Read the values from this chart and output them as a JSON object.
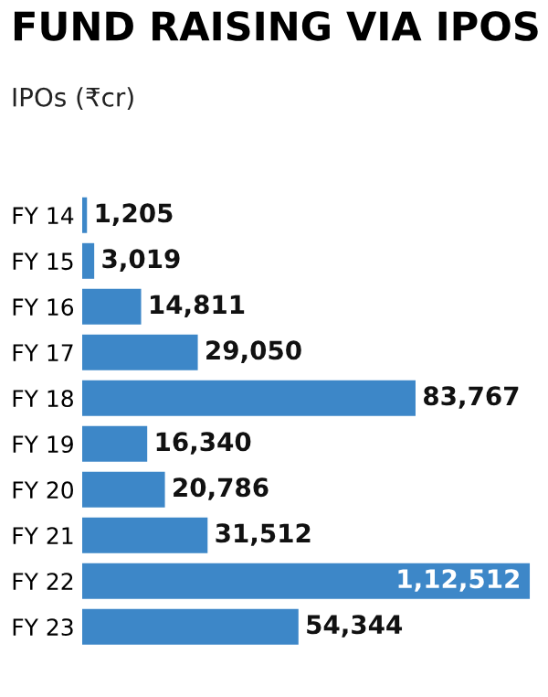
{
  "chart_data": {
    "type": "bar",
    "orientation": "horizontal",
    "title": "FUND RAISING VIA IPOS",
    "subtitle": "IPOs (₹cr)",
    "categories": [
      "FY 14",
      "FY 15",
      "FY 16",
      "FY 17",
      "FY 18",
      "FY 19",
      "FY 20",
      "FY 21",
      "FY 22",
      "FY 23"
    ],
    "values": [
      1205,
      3019,
      14811,
      29050,
      83767,
      16340,
      20786,
      31512,
      112512,
      54344
    ],
    "value_labels": [
      "1,205",
      "3,019",
      "14,811",
      "29,050",
      "83,767",
      "16,340",
      "20,786",
      "31,512",
      "1,12,512",
      "54,344"
    ],
    "color": "#3d87c8",
    "grid": false,
    "legend": false
  }
}
